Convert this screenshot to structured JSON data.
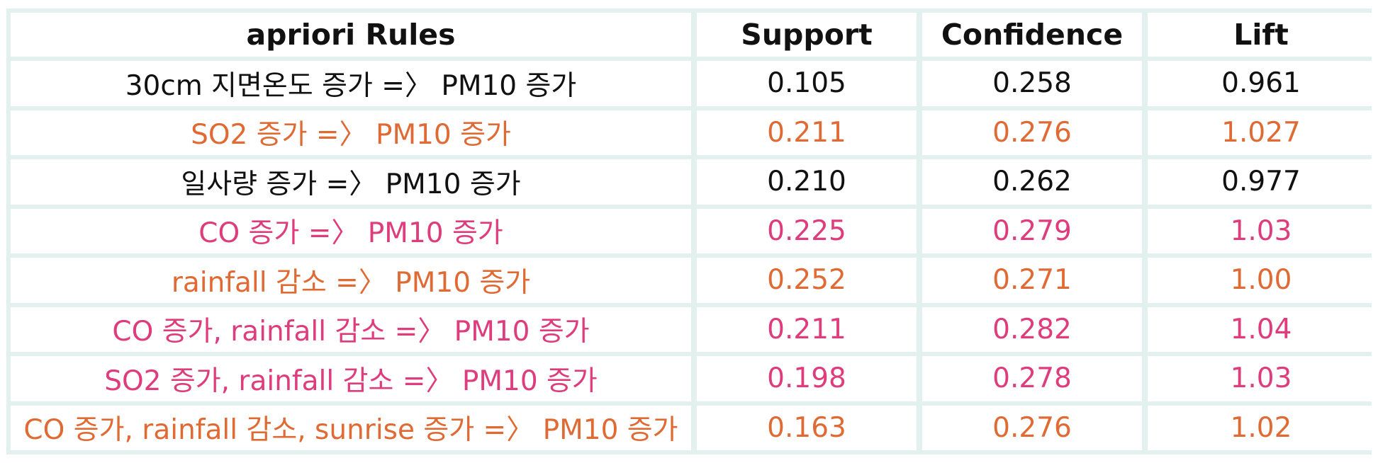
{
  "headers": {
    "rule": "apriori Rules",
    "support": "Support",
    "confidence": "Confidence",
    "lift": "Lift"
  },
  "colors": {
    "black": "#111111",
    "orange": "#e06a34",
    "pink": "#de3c7c",
    "grid": "#e3f1ee"
  },
  "rows": [
    {
      "rule": "30cm 지면온도 증가 =〉 PM10 증가",
      "support": "0.105",
      "confidence": "0.258",
      "lift": "0.961",
      "color": "black"
    },
    {
      "rule": "SO2 증가 =〉 PM10 증가",
      "support": "0.211",
      "confidence": "0.276",
      "lift": "1.027",
      "color": "orange"
    },
    {
      "rule": "일사량 증가 =〉 PM10 증가",
      "support": "0.210",
      "confidence": "0.262",
      "lift": "0.977",
      "color": "black"
    },
    {
      "rule": "CO 증가 =〉 PM10 증가",
      "support": "0.225",
      "confidence": "0.279",
      "lift": "1.03",
      "color": "pink"
    },
    {
      "rule": "rainfall 감소 =〉 PM10 증가",
      "support": "0.252",
      "confidence": "0.271",
      "lift": "1.00",
      "color": "orange"
    },
    {
      "rule": "CO 증가, rainfall 감소 =〉 PM10 증가",
      "support": "0.211",
      "confidence": "0.282",
      "lift": "1.04",
      "color": "pink"
    },
    {
      "rule": "SO2 증가, rainfall 감소 =〉 PM10 증가",
      "support": "0.198",
      "confidence": "0.278",
      "lift": "1.03",
      "color": "pink"
    },
    {
      "rule": "CO 증가, rainfall 감소, sunrise 증가 =〉 PM10 증가",
      "support": "0.163",
      "confidence": "0.276",
      "lift": "1.02",
      "color": "orange"
    }
  ]
}
